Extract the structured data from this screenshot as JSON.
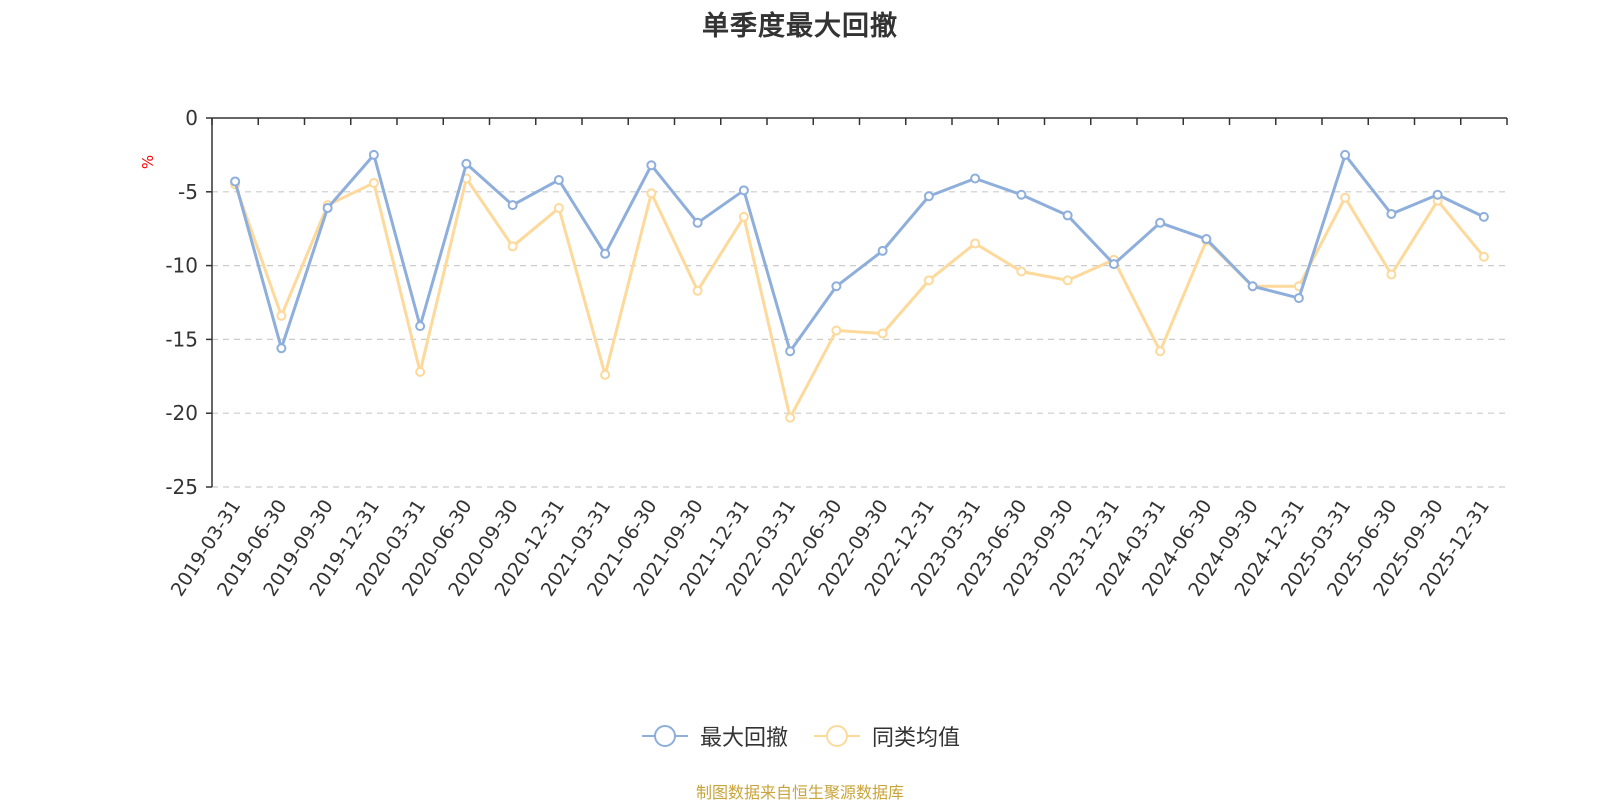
{
  "chart_data": {
    "type": "line",
    "title": "单季度最大回撤",
    "ylabel": "%",
    "xlabel": "",
    "ylim": [
      -25,
      0
    ],
    "yticks": [
      0,
      -5,
      -10,
      -15,
      -20,
      -25
    ],
    "grid": true,
    "legend_position": "bottom",
    "categories": [
      "2019-03-31",
      "2019-06-30",
      "2019-09-30",
      "2019-12-31",
      "2020-03-31",
      "2020-06-30",
      "2020-09-30",
      "2020-12-31",
      "2021-03-31",
      "2021-06-30",
      "2021-09-30",
      "2021-12-31",
      "2022-03-31",
      "2022-06-30",
      "2022-09-30",
      "2022-12-31",
      "2023-03-31",
      "2023-06-30",
      "2023-09-30",
      "2023-12-31",
      "2024-03-31",
      "2024-06-30",
      "2024-09-30",
      "2024-12-31",
      "2025-03-31",
      "2025-06-30",
      "2025-09-30",
      "2025-12-31"
    ],
    "series": [
      {
        "name": "最大回撤",
        "color": "#8eaedb",
        "values": [
          -4.3,
          -15.6,
          -6.1,
          -2.5,
          -14.1,
          -3.1,
          -5.9,
          -4.2,
          -9.2,
          -3.2,
          -7.1,
          -4.9,
          -15.8,
          -11.4,
          -9.0,
          -5.3,
          -4.1,
          -5.2,
          -6.6,
          -9.9,
          -7.1,
          -8.2,
          -11.4,
          -12.2,
          -2.5,
          -6.5,
          -5.2,
          -6.7
        ]
      },
      {
        "name": "同类均值",
        "color": "#fdd99b",
        "values": [
          -4.5,
          -13.4,
          -5.9,
          -4.4,
          -17.2,
          -4.1,
          -8.7,
          -6.1,
          -17.4,
          -5.1,
          -11.7,
          -6.7,
          -20.3,
          -14.4,
          -14.6,
          -11.0,
          -8.5,
          -10.4,
          -11.0,
          -9.6,
          -15.8,
          -8.3,
          -11.4,
          -11.4,
          -5.4,
          -10.6,
          -5.6,
          -9.4
        ]
      }
    ]
  },
  "source_note": "制图数据来自恒生聚源数据库"
}
